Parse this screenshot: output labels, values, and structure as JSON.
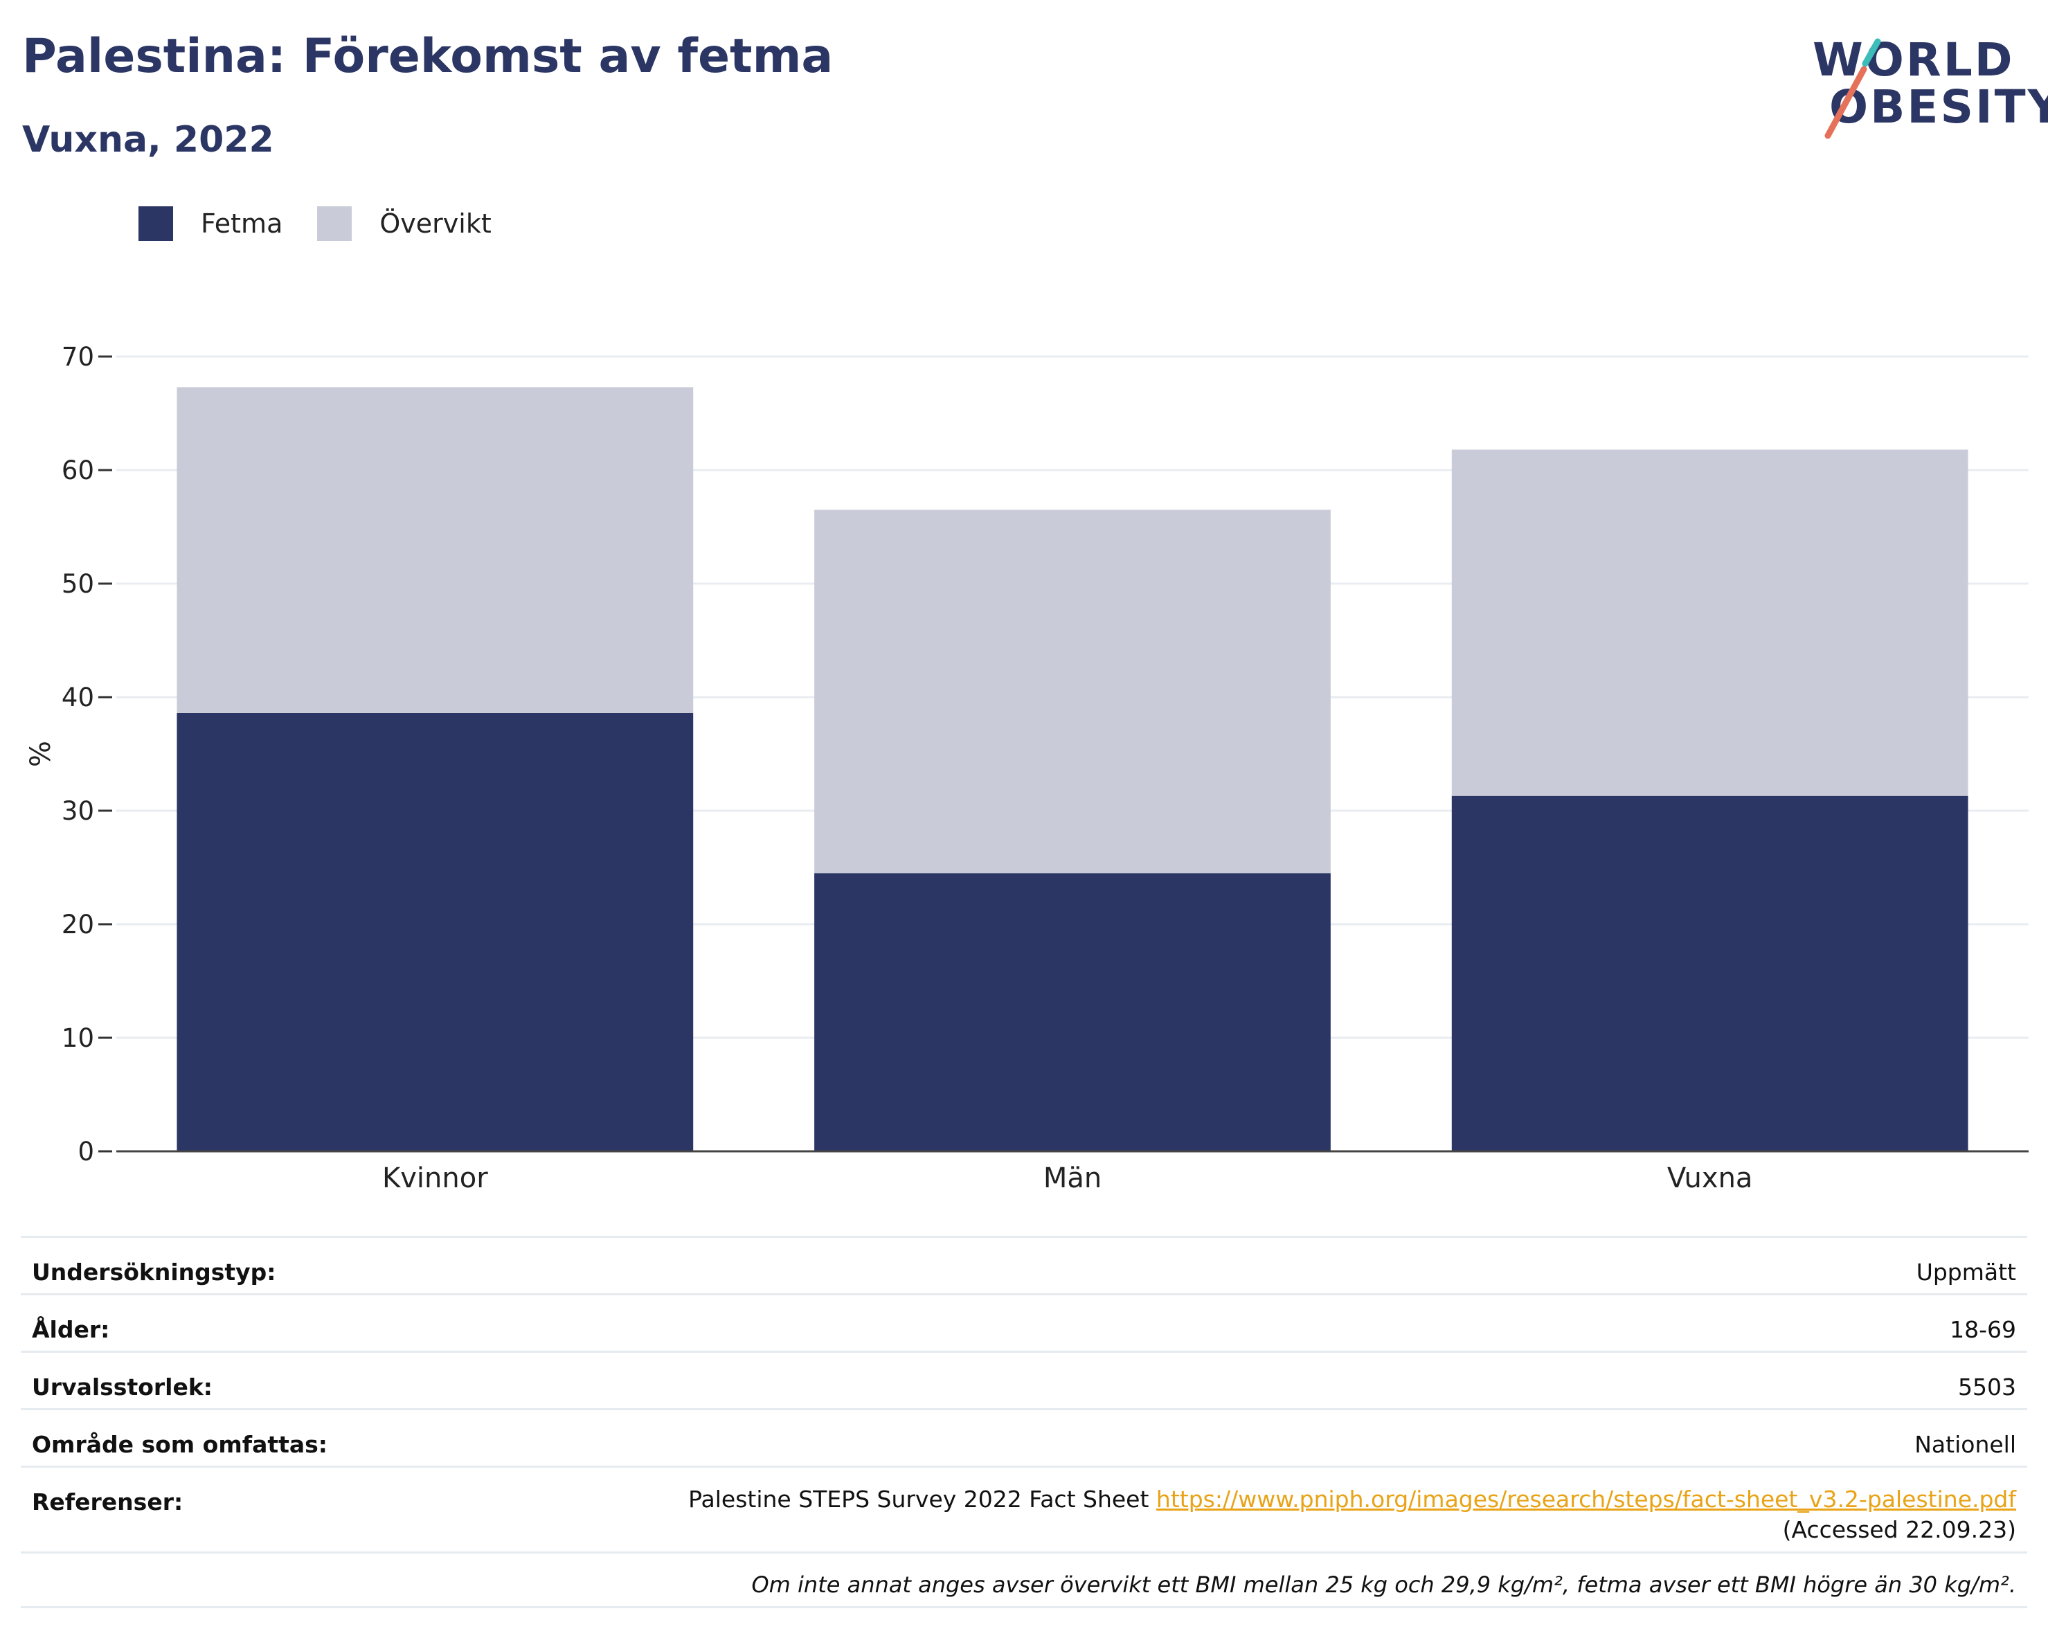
{
  "header": {
    "title": "Palestina: Förekomst av fetma",
    "subtitle": "Vuxna, 2022",
    "logo_line1": "WORLD",
    "logo_line2": "OBESITY",
    "logo_colors": {
      "text": "#2b3664",
      "teal": "#3dbdb9",
      "coral": "#e5715a"
    }
  },
  "legend": [
    {
      "label": "Fetma",
      "color": "#2b3664"
    },
    {
      "label": "Övervikt",
      "color": "#c9ccd8"
    }
  ],
  "chart_data": {
    "type": "bar",
    "stacked": true,
    "categories": [
      "Kvinnor",
      "Män",
      "Vuxna"
    ],
    "series": [
      {
        "name": "Fetma",
        "values": [
          38.6,
          24.5,
          31.3
        ],
        "color": "#2b3664"
      },
      {
        "name": "Övervikt",
        "values": [
          28.7,
          32.0,
          30.5
        ],
        "color": "#c9ccd8"
      }
    ],
    "ylabel": "%",
    "ylim": [
      0,
      70
    ],
    "yticks": [
      0,
      10,
      20,
      30,
      40,
      50,
      60,
      70
    ],
    "grid": true,
    "legend_position": "top-left"
  },
  "info_table": [
    {
      "label": "Undersökningstyp:",
      "value": "Uppmätt"
    },
    {
      "label": "Ålder:",
      "value": "18-69"
    },
    {
      "label": "Urvalsstorlek:",
      "value": "5503"
    },
    {
      "label": "Område som omfattas:",
      "value": "Nationell"
    }
  ],
  "references": {
    "label": "Referenser:",
    "text_before": "Palestine STEPS Survey 2022 Fact Sheet",
    "link": "https://www.pniph.org/images/research/steps/fact-sheet_v3.2-palestine.pdf",
    "text_after": "(Accessed 22.09.23)"
  },
  "footnote": "Om inte annat anges avser övervikt ett BMI mellan 25 kg och 29,9 kg/m², fetma avser ett BMI högre än 30 kg/m²."
}
